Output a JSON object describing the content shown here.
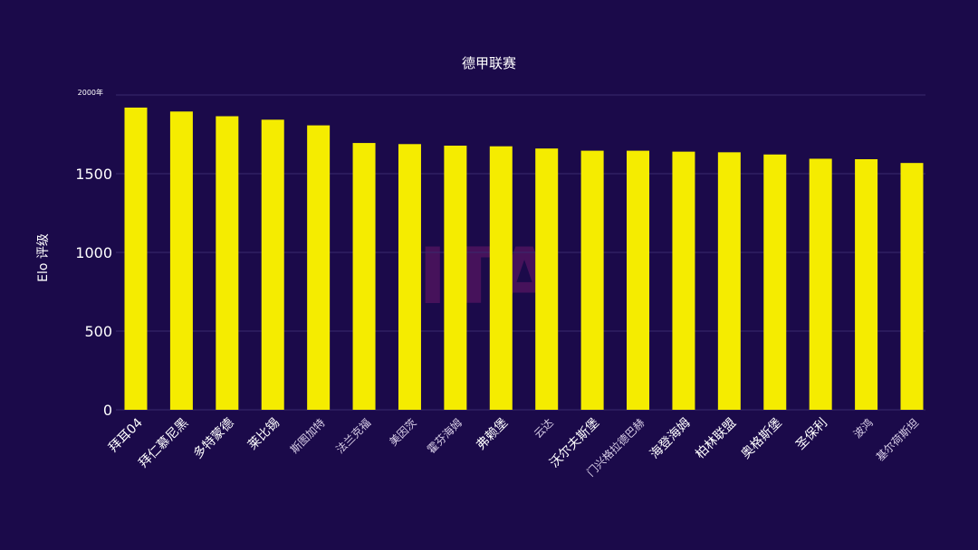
{
  "colors": {
    "background": "#1b0a4a",
    "bar": "#f5ec00",
    "grid": "#3a2a6e",
    "text": "#ffffff"
  },
  "watermark": "ITA",
  "chart_data": {
    "type": "bar",
    "title": "德甲联赛",
    "xlabel": "",
    "ylabel": "Elo 评级",
    "ylim": [
      0,
      2000
    ],
    "yticks": [
      {
        "value": 0,
        "label": "0"
      },
      {
        "value": 500,
        "label": "500"
      },
      {
        "value": 1000,
        "label": "1000"
      },
      {
        "value": 1500,
        "label": "1500"
      },
      {
        "value": 2000,
        "label": "2000年"
      }
    ],
    "grid": true,
    "categories": [
      "拜耳04",
      "拜仁慕尼黑",
      "多特蒙德",
      "莱比锡",
      "斯图加特",
      "法兰克福",
      "美因茨",
      "霍芬海姆",
      "弗赖堡",
      "云达",
      "沃尔夫斯堡",
      "门兴格拉德巴赫",
      "海登海姆",
      "柏林联盟",
      "奥格斯堡",
      "圣保利",
      "波鸿",
      "基尔荷斯坦"
    ],
    "values": [
      1920,
      1895,
      1865,
      1843,
      1807,
      1695,
      1688,
      1678,
      1674,
      1660,
      1646,
      1646,
      1640,
      1636,
      1622,
      1595,
      1592,
      1568
    ]
  }
}
